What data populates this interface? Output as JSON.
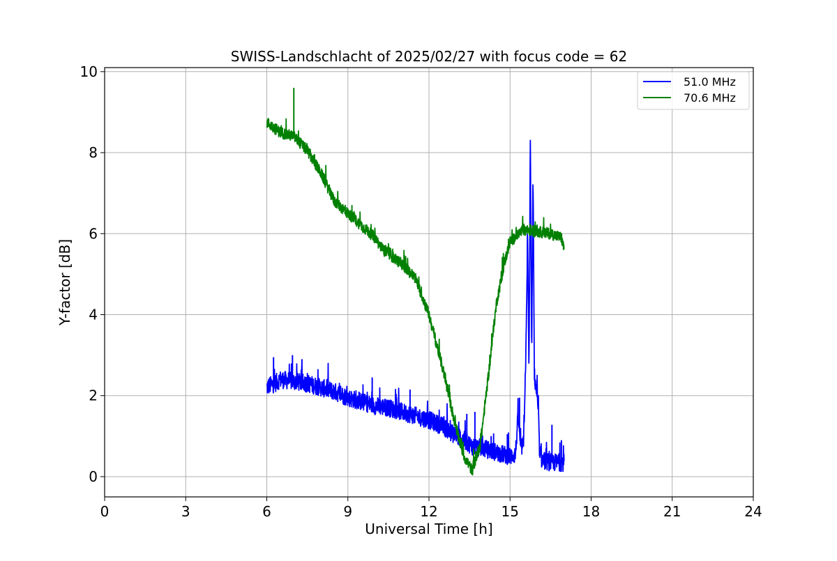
{
  "chart_data": {
    "type": "line",
    "title": "SWISS-Landschlacht of 2025/02/27 with focus code = 62",
    "xlabel": "Universal Time [h]",
    "ylabel": "Y-factor [dB]",
    "xlim": [
      0,
      24
    ],
    "ylim": [
      -0.5,
      10.1
    ],
    "xticks": [
      0,
      3,
      6,
      9,
      12,
      15,
      18,
      21,
      24
    ],
    "yticks": [
      0,
      2,
      4,
      6,
      8,
      10
    ],
    "xtick_labels": [
      "0",
      "3",
      "6",
      "9",
      "12",
      "15",
      "18",
      "21",
      "24"
    ],
    "ytick_labels": [
      "0",
      "2",
      "4",
      "6",
      "8",
      "10"
    ],
    "grid": true,
    "legend_position": "top-right",
    "series": [
      {
        "name": "51.0 MHz",
        "color": "#0000ff",
        "noise": 0.22,
        "x": [
          6.0,
          6.1,
          6.3,
          6.5,
          7.0,
          7.5,
          8.0,
          8.5,
          9.0,
          9.5,
          10.0,
          10.5,
          11.0,
          11.5,
          12.0,
          12.5,
          13.0,
          13.3,
          13.6,
          14.0,
          14.5,
          15.0,
          15.2,
          15.3,
          15.4,
          15.5,
          15.6,
          15.65,
          15.7,
          15.75,
          15.8,
          15.85,
          15.9,
          16.0,
          16.05,
          16.1,
          16.2,
          16.5,
          17.0
        ],
        "y": [
          2.2,
          2.25,
          2.3,
          2.4,
          2.35,
          2.3,
          2.2,
          2.1,
          1.95,
          1.85,
          1.75,
          1.7,
          1.6,
          1.5,
          1.4,
          1.25,
          1.0,
          0.9,
          0.75,
          0.7,
          0.6,
          0.5,
          0.55,
          1.5,
          0.7,
          0.8,
          3.5,
          6.0,
          2.5,
          8.4,
          3.0,
          7.5,
          2.5,
          2.0,
          1.5,
          0.5,
          0.4,
          0.35,
          0.35
        ],
        "peaks": [
          [
            6.25,
            2.95
          ],
          [
            6.95,
            3.0
          ],
          [
            7.3,
            2.9
          ],
          [
            9.9,
            2.45
          ],
          [
            11.3,
            2.15
          ],
          [
            13.4,
            1.55
          ],
          [
            13.7,
            1.6
          ],
          [
            14.3,
            1.0
          ],
          [
            14.9,
            1.05
          ],
          [
            15.35,
            1.95
          ],
          [
            16.55,
            1.28
          ],
          [
            16.9,
            0.9
          ]
        ]
      },
      {
        "name": "70.6 MHz",
        "color": "#008000",
        "noise": 0.14,
        "x": [
          6.0,
          6.2,
          6.5,
          7.0,
          7.5,
          8.0,
          8.5,
          9.0,
          9.5,
          10.0,
          10.3,
          10.5,
          11.0,
          11.5,
          12.0,
          12.5,
          13.0,
          13.3,
          13.6,
          13.9,
          14.2,
          14.5,
          14.8,
          15.0,
          15.5,
          16.0,
          16.5,
          16.9,
          17.0
        ],
        "y": [
          8.75,
          8.65,
          8.5,
          8.4,
          8.05,
          7.5,
          6.8,
          6.5,
          6.2,
          5.9,
          5.6,
          5.5,
          5.25,
          4.9,
          4.0,
          2.7,
          1.2,
          0.5,
          0.15,
          0.8,
          2.5,
          4.3,
          5.3,
          5.8,
          6.1,
          6.05,
          6.0,
          5.9,
          5.6
        ],
        "peaks": [
          [
            7.0,
            9.6
          ]
        ]
      }
    ]
  }
}
